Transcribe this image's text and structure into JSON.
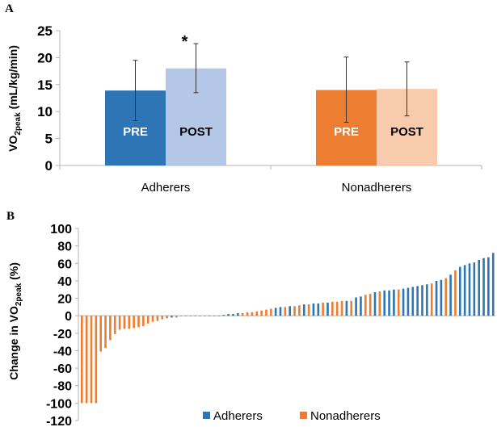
{
  "chart_data": [
    {
      "panel_label": "A",
      "type": "bar",
      "ylabel_main": "VO",
      "ylabel_sub": "2peak",
      "ylabel_units": " (mL/kg/min)",
      "ylim": [
        0,
        25
      ],
      "yticks": [
        0,
        5,
        10,
        15,
        20,
        25
      ],
      "groups": [
        {
          "name": "Adherers",
          "bars": [
            {
              "label": "PRE",
              "value": 13.9,
              "err_low": 8.3,
              "err_high": 19.5,
              "color": "#2e75b6",
              "text_color": "#ffffff"
            },
            {
              "label": "POST",
              "value": 18.0,
              "err_low": 13.5,
              "err_high": 22.6,
              "color": "#b4c7e7",
              "text_color": "#000000"
            }
          ],
          "annotation": "*"
        },
        {
          "name": "Nonadherers",
          "bars": [
            {
              "label": "PRE",
              "value": 14.0,
              "err_low": 8.0,
              "err_high": 20.1,
              "color": "#ed7d31",
              "text_color": "#ffffff"
            },
            {
              "label": "POST",
              "value": 14.2,
              "err_low": 9.2,
              "err_high": 19.2,
              "color": "#f8cbad",
              "text_color": "#000000"
            }
          ],
          "annotation": ""
        }
      ]
    },
    {
      "panel_label": "B",
      "type": "bar",
      "ylabel_main": "Change in VO",
      "ylabel_sub": "2peak",
      "ylabel_units": " (%)",
      "ylim": [
        -120,
        100
      ],
      "yticks": [
        -120,
        -100,
        -80,
        -60,
        -40,
        -20,
        0,
        20,
        40,
        60,
        80,
        100
      ],
      "legend": [
        {
          "name": "Adherers",
          "color": "#2e75b6"
        },
        {
          "name": "Nonadherers",
          "color": "#ed7d31"
        }
      ],
      "series": [
        {
          "group": "N",
          "value": -100
        },
        {
          "group": "N",
          "value": -100
        },
        {
          "group": "N",
          "value": -100
        },
        {
          "group": "N",
          "value": -100
        },
        {
          "group": "N",
          "value": -41
        },
        {
          "group": "N",
          "value": -37
        },
        {
          "group": "N",
          "value": -28
        },
        {
          "group": "N",
          "value": -21
        },
        {
          "group": "N",
          "value": -16
        },
        {
          "group": "N",
          "value": -15
        },
        {
          "group": "N",
          "value": -15
        },
        {
          "group": "N",
          "value": -14
        },
        {
          "group": "N",
          "value": -13
        },
        {
          "group": "N",
          "value": -12
        },
        {
          "group": "N",
          "value": -9
        },
        {
          "group": "N",
          "value": -7
        },
        {
          "group": "N",
          "value": -6
        },
        {
          "group": "N",
          "value": -4
        },
        {
          "group": "N",
          "value": -3
        },
        {
          "group": "A",
          "value": -2
        },
        {
          "group": "N",
          "value": -2
        },
        {
          "group": "N",
          "value": 0
        },
        {
          "group": "N",
          "value": 0
        },
        {
          "group": "N",
          "value": 0
        },
        {
          "group": "N",
          "value": 0
        },
        {
          "group": "N",
          "value": 0
        },
        {
          "group": "N",
          "value": 0
        },
        {
          "group": "N",
          "value": 0
        },
        {
          "group": "N",
          "value": 0
        },
        {
          "group": "N",
          "value": 0
        },
        {
          "group": "A",
          "value": 1
        },
        {
          "group": "A",
          "value": 2
        },
        {
          "group": "A",
          "value": 2
        },
        {
          "group": "A",
          "value": 3
        },
        {
          "group": "N",
          "value": 3
        },
        {
          "group": "N",
          "value": 4
        },
        {
          "group": "N",
          "value": 4
        },
        {
          "group": "N",
          "value": 5
        },
        {
          "group": "N",
          "value": 6
        },
        {
          "group": "N",
          "value": 7
        },
        {
          "group": "N",
          "value": 8
        },
        {
          "group": "A",
          "value": 9
        },
        {
          "group": "A",
          "value": 10
        },
        {
          "group": "N",
          "value": 10
        },
        {
          "group": "A",
          "value": 11
        },
        {
          "group": "N",
          "value": 11
        },
        {
          "group": "N",
          "value": 12
        },
        {
          "group": "A",
          "value": 13
        },
        {
          "group": "N",
          "value": 13
        },
        {
          "group": "A",
          "value": 14
        },
        {
          "group": "A",
          "value": 14
        },
        {
          "group": "N",
          "value": 15
        },
        {
          "group": "A",
          "value": 15
        },
        {
          "group": "N",
          "value": 16
        },
        {
          "group": "N",
          "value": 16
        },
        {
          "group": "N",
          "value": 17
        },
        {
          "group": "A",
          "value": 17
        },
        {
          "group": "N",
          "value": 17
        },
        {
          "group": "A",
          "value": 21
        },
        {
          "group": "A",
          "value": 22
        },
        {
          "group": "N",
          "value": 24
        },
        {
          "group": "N",
          "value": 25
        },
        {
          "group": "A",
          "value": 27
        },
        {
          "group": "N",
          "value": 28
        },
        {
          "group": "A",
          "value": 29
        },
        {
          "group": "A",
          "value": 29
        },
        {
          "group": "A",
          "value": 30
        },
        {
          "group": "N",
          "value": 30
        },
        {
          "group": "A",
          "value": 31
        },
        {
          "group": "A",
          "value": 32
        },
        {
          "group": "A",
          "value": 33
        },
        {
          "group": "A",
          "value": 34
        },
        {
          "group": "A",
          "value": 35
        },
        {
          "group": "A",
          "value": 36
        },
        {
          "group": "N",
          "value": 37
        },
        {
          "group": "A",
          "value": 40
        },
        {
          "group": "A",
          "value": 41
        },
        {
          "group": "N",
          "value": 43
        },
        {
          "group": "A",
          "value": 47
        },
        {
          "group": "N",
          "value": 52
        },
        {
          "group": "A",
          "value": 56
        },
        {
          "group": "A",
          "value": 58
        },
        {
          "group": "A",
          "value": 60
        },
        {
          "group": "A",
          "value": 61
        },
        {
          "group": "A",
          "value": 64
        },
        {
          "group": "A",
          "value": 66
        },
        {
          "group": "A",
          "value": 67
        },
        {
          "group": "A",
          "value": 72
        }
      ]
    }
  ]
}
